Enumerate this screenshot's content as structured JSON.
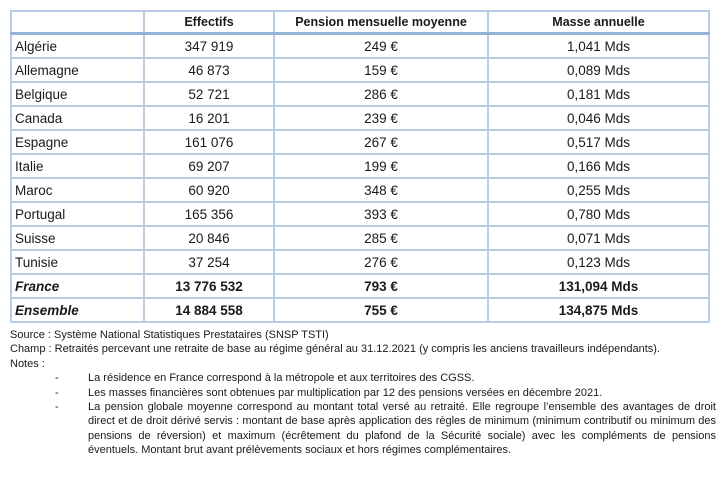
{
  "table": {
    "columns": [
      "",
      "Effectifs",
      "Pension mensuelle moyenne",
      "Masse annuelle"
    ],
    "rows": [
      {
        "label": "Algérie",
        "effectifs": "347 919",
        "pension": "249 €",
        "masse": "1,041 Mds",
        "emphasis": false
      },
      {
        "label": "Allemagne",
        "effectifs": "46 873",
        "pension": "159 €",
        "masse": "0,089 Mds",
        "emphasis": false
      },
      {
        "label": "Belgique",
        "effectifs": "52 721",
        "pension": "286 €",
        "masse": "0,181 Mds",
        "emphasis": false
      },
      {
        "label": "Canada",
        "effectifs": "16 201",
        "pension": "239 €",
        "masse": "0,046 Mds",
        "emphasis": false
      },
      {
        "label": "Espagne",
        "effectifs": "161 076",
        "pension": "267 €",
        "masse": "0,517 Mds",
        "emphasis": false
      },
      {
        "label": "Italie",
        "effectifs": "69 207",
        "pension": "199 €",
        "masse": "0,166 Mds",
        "emphasis": false
      },
      {
        "label": "Maroc",
        "effectifs": "60 920",
        "pension": "348 €",
        "masse": "0,255 Mds",
        "emphasis": false
      },
      {
        "label": "Portugal",
        "effectifs": "165 356",
        "pension": "393 €",
        "masse": "0,780 Mds",
        "emphasis": false
      },
      {
        "label": "Suisse",
        "effectifs": "20 846",
        "pension": "285 €",
        "masse": "0,071 Mds",
        "emphasis": false
      },
      {
        "label": "Tunisie",
        "effectifs": "37 254",
        "pension": "276 €",
        "masse": "0,123 Mds",
        "emphasis": false
      },
      {
        "label": "France",
        "effectifs": "13 776 532",
        "pension": "793 €",
        "masse": "131,094 Mds",
        "emphasis": true
      },
      {
        "label": "Ensemble",
        "effectifs": "14 884 558",
        "pension": "755 €",
        "masse": "134,875 Mds",
        "emphasis": true
      }
    ]
  },
  "footer": {
    "source": "Source : Système National Statistiques Prestataires (SNSP TSTI)",
    "champ": "Champ : Retraités percevant une retraite de base au régime général au 31.12.2021 (y compris les anciens travailleurs indépendants).",
    "notes_label": "Notes :",
    "note_marker": "-",
    "notes": [
      "La résidence en France correspond à la métropole et aux territoires des CGSS.",
      "Les masses financières sont obtenues par multiplication par 12 des pensions versées en décembre 2021.",
      "La pension globale moyenne correspond au montant total versé au retraité. Elle regroupe l’ensemble des avantages de droit direct et de droit dérivé servis : montant de base après application des règles de minimum (minimum contributif ou minimum des pensions de réversion) et maximum (écrêtement du plafond de la Sécurité sociale) avec les compléments de pensions éventuels. Montant brut avant prélèvements sociaux et hors régimes complémentaires."
    ]
  },
  "colors": {
    "border_grid": "#b8cce4",
    "border_header_rule": "#95b3d7",
    "text": "#1a1a1a"
  }
}
